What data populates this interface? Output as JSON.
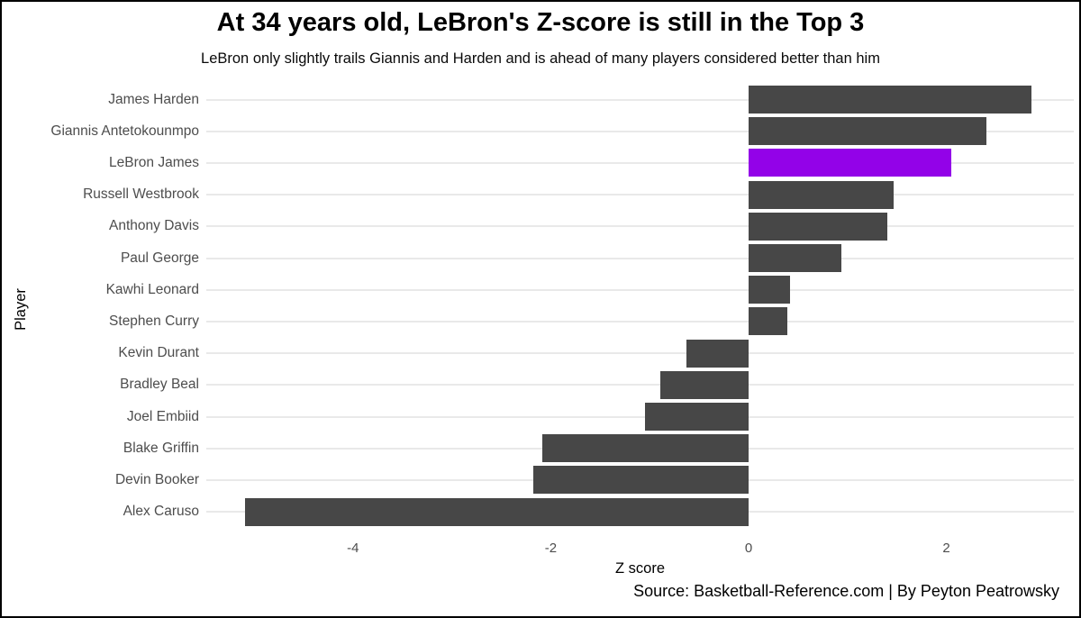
{
  "chart_data": {
    "type": "bar",
    "orientation": "horizontal",
    "title": "At 34 years old, LeBron's Z-score is still in the Top 3",
    "subtitle": "LeBron only slightly trails Giannis and Harden and is ahead of many players considered better than him",
    "caption": "Source: Basketball-Reference.com | By Peyton Peatrowsky",
    "xlabel": "Z score",
    "ylabel": "Player",
    "categories": [
      "James Harden",
      "Giannis Antetokounmpo",
      "LeBron James",
      "Russell Westbrook",
      "Anthony Davis",
      "Paul George",
      "Kawhi Leonard",
      "Stephen Curry",
      "Kevin Durant",
      "Bradley Beal",
      "Joel Embiid",
      "Blake Griffin",
      "Devin Booker",
      "Alex Caruso"
    ],
    "values": [
      2.86,
      2.4,
      2.05,
      1.47,
      1.4,
      0.94,
      0.42,
      0.39,
      -0.63,
      -0.89,
      -1.05,
      -2.09,
      -2.18,
      -5.09
    ],
    "highlight_category": "LeBron James",
    "x_ticks": [
      -4,
      -2,
      0,
      2
    ],
    "x_tick_labels": [
      "-4",
      "-2",
      "0",
      "2"
    ],
    "xlim": [
      -5.48,
      3.29
    ],
    "grid": "horizontal-major-only",
    "legend": "none",
    "colors": {
      "bar": "#474747",
      "highlight": "#9302e8",
      "gridline": "#e9e9e9",
      "axis_text": "#4d4d4d",
      "text": "#000000",
      "background": "#ffffff"
    }
  }
}
